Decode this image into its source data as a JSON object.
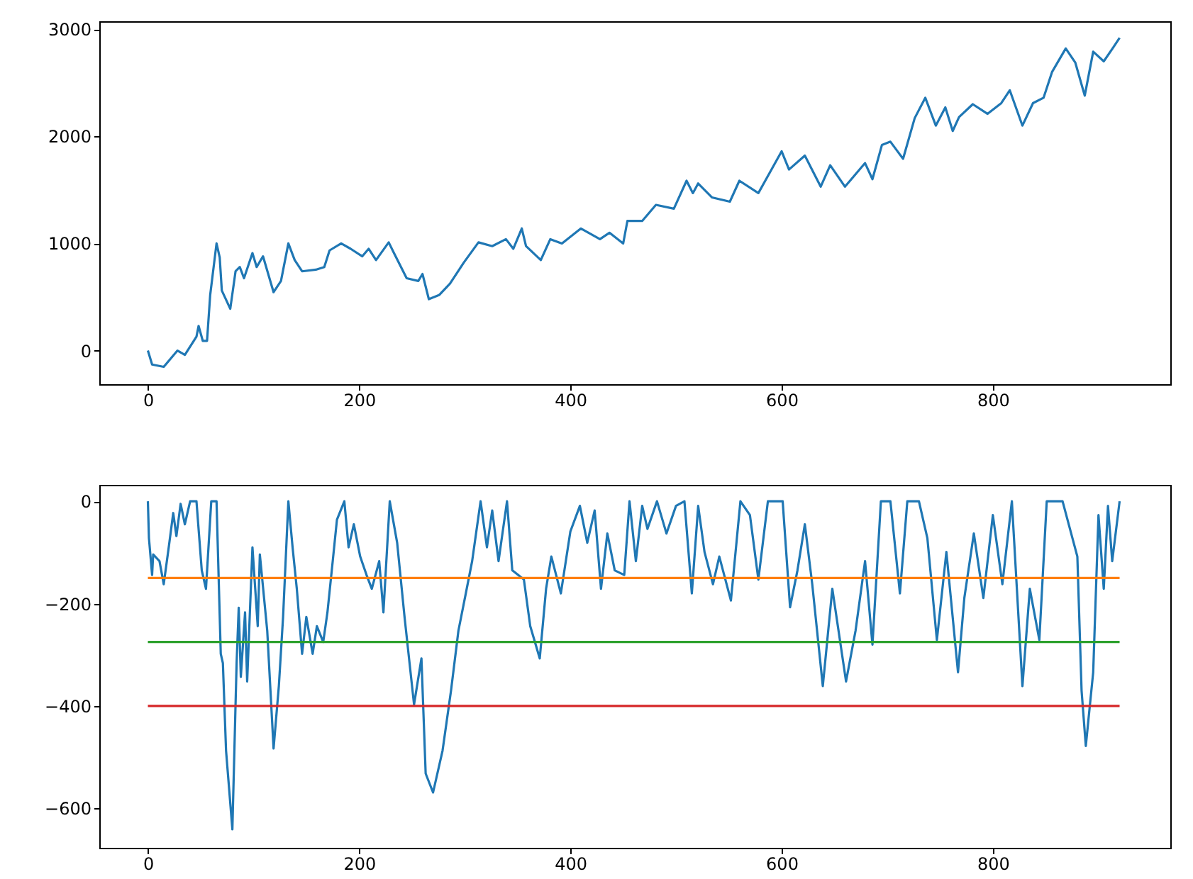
{
  "chart_data": [
    {
      "type": "line",
      "xlim": [
        -46,
        968
      ],
      "xticks": [
        0,
        200,
        400,
        600,
        800
      ],
      "ylim": [
        -314,
        3074
      ],
      "yticks": [
        0,
        1000,
        2000,
        3000
      ],
      "grid": false,
      "series": [
        {
          "color": "#1f77b4",
          "x": [
            0,
            4,
            15,
            28,
            35,
            46,
            48,
            52,
            56,
            59,
            65,
            68,
            70,
            78,
            83,
            87,
            91,
            99,
            103,
            109,
            119,
            126,
            133,
            139,
            146,
            159,
            167,
            172,
            183,
            192,
            203,
            209,
            216,
            228,
            233,
            245,
            256,
            260,
            266,
            276,
            286,
            299,
            313,
            326,
            339,
            346,
            354,
            358,
            372,
            381,
            392,
            410,
            428,
            437,
            450,
            454,
            457,
            468,
            481,
            498,
            510,
            516,
            521,
            534,
            551,
            560,
            578,
            600,
            607,
            622,
            637,
            646,
            660,
            679,
            686,
            695,
            703,
            715,
            726,
            736,
            746,
            755,
            762,
            768,
            781,
            795,
            808,
            816,
            828,
            838,
            848,
            856,
            869,
            878,
            887,
            895,
            905,
            914,
            920
          ],
          "values": [
            0,
            -130,
            -152,
            0,
            -40,
            130,
            230,
            90,
            90,
            520,
            1000,
            870,
            560,
            390,
            740,
            780,
            675,
            910,
            780,
            880,
            545,
            650,
            1000,
            845,
            740,
            755,
            780,
            935,
            1000,
            950,
            880,
            950,
            845,
            1010,
            910,
            675,
            650,
            715,
            480,
            520,
            625,
            820,
            1010,
            975,
            1040,
            950,
            1140,
            975,
            845,
            1040,
            1000,
            1140,
            1040,
            1100,
            1000,
            1210,
            1210,
            1210,
            1360,
            1325,
            1585,
            1470,
            1560,
            1430,
            1390,
            1585,
            1470,
            1860,
            1690,
            1820,
            1530,
            1730,
            1530,
            1750,
            1600,
            1920,
            1950,
            1790,
            2170,
            2360,
            2100,
            2270,
            2050,
            2180,
            2300,
            2210,
            2310,
            2430,
            2100,
            2310,
            2360,
            2600,
            2820,
            2690,
            2380,
            2790,
            2700,
            2830,
            2920
          ]
        }
      ]
    },
    {
      "type": "line",
      "xlim": [
        -46,
        968
      ],
      "xticks": [
        0,
        200,
        400,
        600,
        800
      ],
      "ylim": [
        -677,
        32
      ],
      "yticks": [
        0,
        -200,
        -400,
        -600
      ],
      "grid": false,
      "series": [
        {
          "color": "#1f77b4",
          "x": [
            0,
            1,
            4,
            5,
            11,
            15,
            20,
            24,
            27,
            31,
            35,
            40,
            46,
            51,
            55,
            60,
            65,
            69,
            71,
            74,
            80,
            84,
            86,
            88,
            92,
            94,
            99,
            104,
            106,
            113,
            119,
            124,
            128,
            133,
            137,
            141,
            146,
            150,
            156,
            160,
            166,
            170,
            175,
            179,
            186,
            190,
            195,
            201,
            207,
            212,
            219,
            223,
            229,
            236,
            243,
            252,
            259,
            263,
            270,
            279,
            287,
            294,
            301,
            307,
            315,
            321,
            326,
            332,
            340,
            345,
            356,
            362,
            371,
            377,
            382,
            391,
            400,
            409,
            416,
            423,
            429,
            435,
            442,
            451,
            456,
            462,
            468,
            473,
            482,
            491,
            500,
            508,
            515,
            521,
            527,
            535,
            541,
            552,
            561,
            570,
            578,
            587,
            601,
            608,
            615,
            622,
            629,
            639,
            648,
            661,
            670,
            679,
            686,
            694,
            703,
            712,
            719,
            730,
            738,
            747,
            756,
            767,
            773,
            782,
            791,
            800,
            809,
            818,
            828,
            835,
            844,
            851,
            866,
            873,
            880,
            884,
            888,
            895,
            900,
            905,
            909,
            913,
            920
          ],
          "values": [
            0,
            -72,
            -144,
            -104,
            -117,
            -162,
            -86,
            -23,
            -68,
            -5,
            -45,
            0,
            0,
            -135,
            -171,
            0,
            0,
            -298,
            -316,
            -487,
            -641,
            -316,
            -208,
            -343,
            -217,
            -352,
            -90,
            -244,
            -104,
            -253,
            -483,
            -361,
            -226,
            0,
            -90,
            -171,
            -298,
            -226,
            -298,
            -244,
            -275,
            -217,
            -117,
            -36,
            0,
            -90,
            -45,
            -108,
            -144,
            -171,
            -117,
            -217,
            0,
            -81,
            -226,
            -397,
            -307,
            -532,
            -569,
            -487,
            -370,
            -253,
            -180,
            -117,
            0,
            -90,
            -18,
            -117,
            0,
            -135,
            -153,
            -244,
            -307,
            -171,
            -108,
            -180,
            -59,
            -9,
            -81,
            -18,
            -171,
            -63,
            -135,
            -144,
            0,
            -117,
            -9,
            -54,
            0,
            -63,
            -9,
            0,
            -180,
            -9,
            -99,
            -162,
            -108,
            -194,
            0,
            -27,
            -153,
            0,
            0,
            -207,
            -135,
            -45,
            -162,
            -361,
            -171,
            -352,
            -253,
            -117,
            -280,
            0,
            0,
            -180,
            0,
            0,
            -72,
            -271,
            -99,
            -334,
            -189,
            -63,
            -189,
            -27,
            -162,
            0,
            -361,
            -171,
            -271,
            0,
            0,
            -54,
            -108,
            -370,
            -478,
            -334,
            -27,
            -171,
            -9,
            -117,
            0
          ]
        },
        {
          "color": "#ff7f0e",
          "x": [
            0,
            920
          ],
          "values": [
            -150,
            -150
          ]
        },
        {
          "color": "#2ca02c",
          "x": [
            0,
            920
          ],
          "values": [
            -275,
            -275
          ]
        },
        {
          "color": "#d62728",
          "x": [
            0,
            920
          ],
          "values": [
            -400,
            -400
          ]
        }
      ]
    }
  ]
}
